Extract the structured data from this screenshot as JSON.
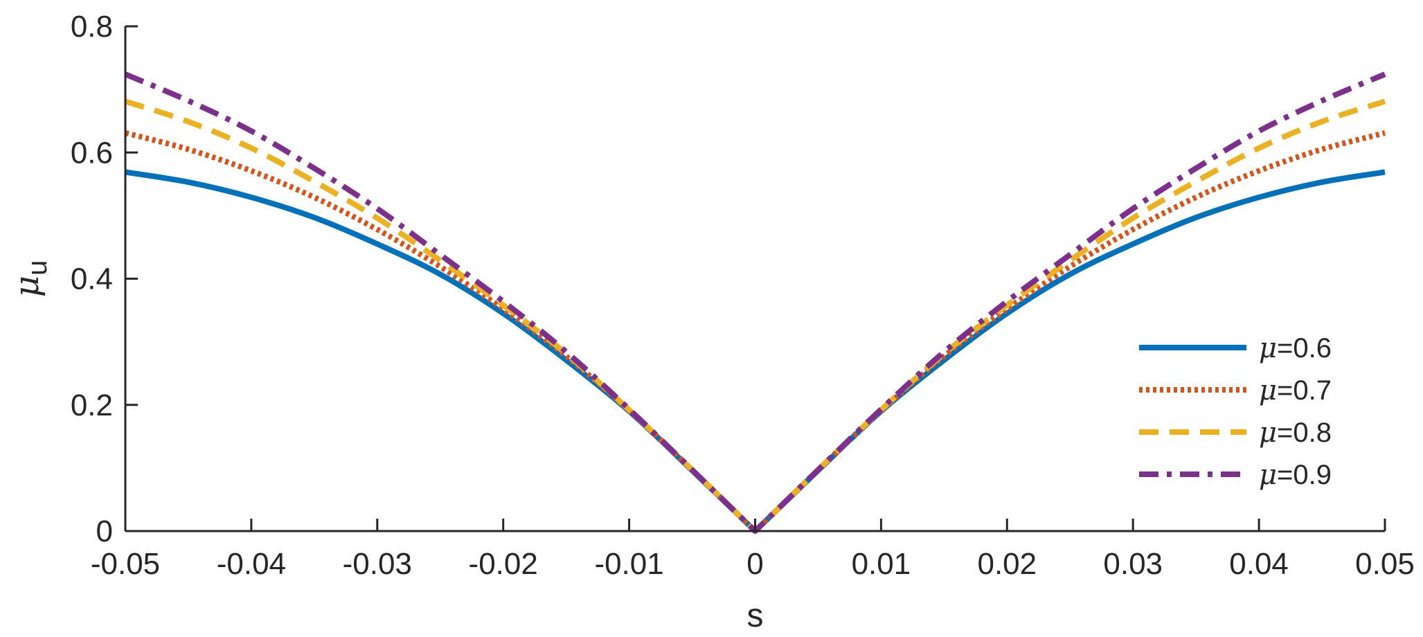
{
  "chart_data": {
    "type": "line",
    "xlabel": "s",
    "ylabel": {
      "symbol": "μ",
      "subscript": "u"
    },
    "xlim": [
      -0.05,
      0.05
    ],
    "ylim": [
      0,
      0.8
    ],
    "xticks": [
      {
        "value": -0.05,
        "label": "-0.05"
      },
      {
        "value": -0.04,
        "label": "-0.04"
      },
      {
        "value": -0.03,
        "label": "-0.03"
      },
      {
        "value": -0.02,
        "label": "-0.02"
      },
      {
        "value": -0.01,
        "label": "-0.01"
      },
      {
        "value": 0,
        "label": "0"
      },
      {
        "value": 0.01,
        "label": "0.01"
      },
      {
        "value": 0.02,
        "label": "0.02"
      },
      {
        "value": 0.03,
        "label": "0.03"
      },
      {
        "value": 0.04,
        "label": "0.04"
      },
      {
        "value": 0.05,
        "label": "0.05"
      }
    ],
    "yticks": [
      {
        "value": 0,
        "label": "0"
      },
      {
        "value": 0.2,
        "label": "0.2"
      },
      {
        "value": 0.4,
        "label": "0.4"
      },
      {
        "value": 0.6,
        "label": "0.6"
      },
      {
        "value": 0.8,
        "label": "0.8"
      }
    ],
    "grid": false,
    "box": "left-bottom",
    "legend_position": "lower-right",
    "x": [
      0,
      0.005,
      0.01,
      0.015,
      0.02,
      0.025,
      0.03,
      0.035,
      0.04,
      0.045,
      0.05
    ],
    "series": [
      {
        "name": "μ=0.6",
        "legend_symbol": "μ",
        "legend_value": "=0.6",
        "color": "#0072BD",
        "style": "solid",
        "values": [
          0,
          0.096,
          0.19,
          0.271,
          0.345,
          0.407,
          0.455,
          0.497,
          0.529,
          0.553,
          0.569
        ]
      },
      {
        "name": "μ=0.7",
        "legend_symbol": "μ",
        "legend_value": "=0.7",
        "color": "#D95319",
        "style": "dotted",
        "values": [
          0,
          0.097,
          0.191,
          0.277,
          0.352,
          0.419,
          0.478,
          0.529,
          0.571,
          0.605,
          0.631
        ]
      },
      {
        "name": "μ=0.8",
        "legend_symbol": "μ",
        "legend_value": "=0.8",
        "color": "#EDB120",
        "style": "dashed",
        "values": [
          0,
          0.097,
          0.192,
          0.281,
          0.358,
          0.429,
          0.496,
          0.554,
          0.607,
          0.649,
          0.681
        ]
      },
      {
        "name": "μ=0.9",
        "legend_symbol": "μ",
        "legend_value": "=0.9",
        "color": "#7E2F8E",
        "style": "dashdot",
        "values": [
          0,
          0.097,
          0.193,
          0.284,
          0.364,
          0.438,
          0.511,
          0.575,
          0.634,
          0.682,
          0.724
        ]
      }
    ],
    "symmetric_about_zero": true
  }
}
